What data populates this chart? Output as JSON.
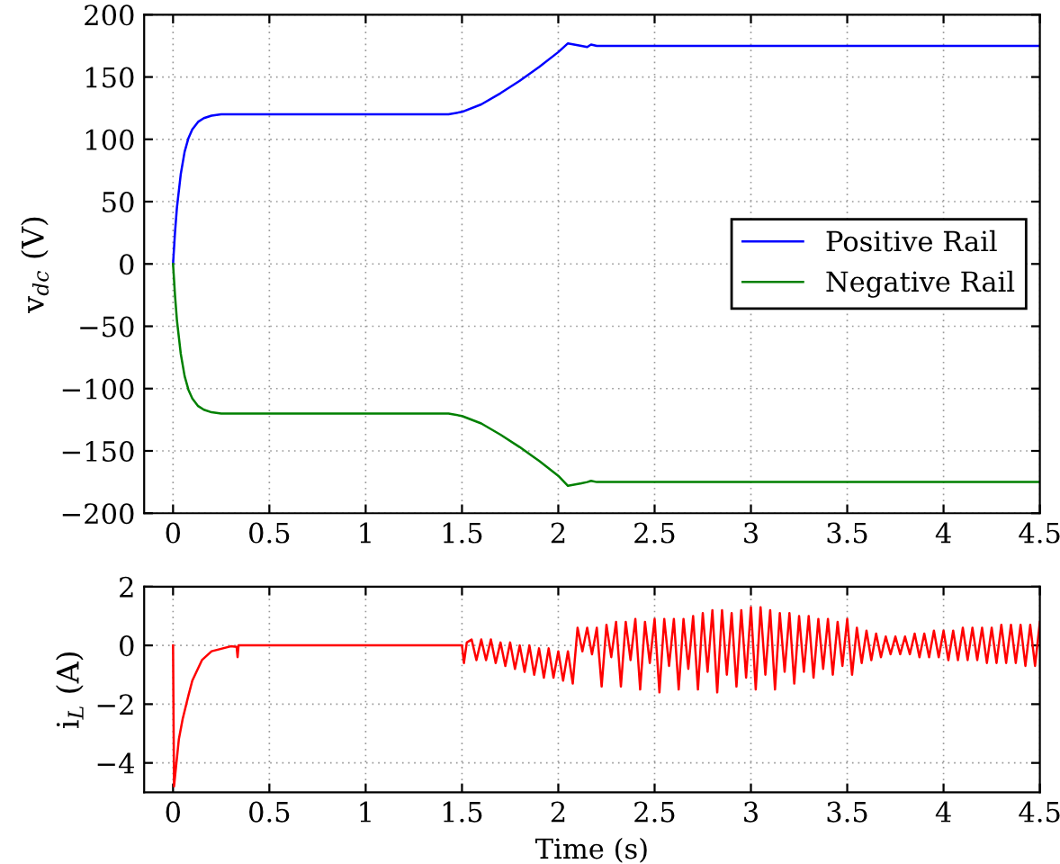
{
  "chart_data": [
    {
      "type": "line",
      "ylabel": "v$_{dc}$ (V)",
      "xlim": [
        -0.15,
        4.5
      ],
      "ylim": [
        -200,
        200
      ],
      "xticks": [
        0,
        0.5,
        1,
        1.5,
        2,
        2.5,
        3,
        3.5,
        4,
        4.5
      ],
      "yticks": [
        -200,
        -150,
        -100,
        -50,
        0,
        50,
        100,
        150,
        200
      ],
      "grid": true,
      "legend": "right",
      "marker": "none",
      "line_style": "solid",
      "series": [
        {
          "name": "Positive Rail",
          "color": "#0000ff",
          "x": [
            0,
            0.01,
            0.02,
            0.04,
            0.06,
            0.08,
            0.1,
            0.13,
            0.16,
            0.2,
            0.25,
            0.3,
            1.43,
            1.5,
            1.6,
            1.7,
            1.8,
            1.9,
            2.0,
            2.05,
            2.12,
            2.15,
            2.17,
            2.2,
            4.5
          ],
          "values": [
            0,
            25,
            45,
            72,
            90,
            101,
            108,
            114,
            117,
            119,
            120,
            120,
            120,
            122,
            128,
            137,
            147,
            158,
            170,
            177,
            175,
            174,
            176,
            175,
            175
          ]
        },
        {
          "name": "Negative Rail",
          "color": "#008000",
          "x": [
            0,
            0.01,
            0.02,
            0.04,
            0.06,
            0.08,
            0.1,
            0.13,
            0.16,
            0.2,
            0.25,
            0.3,
            1.43,
            1.5,
            1.6,
            1.7,
            1.8,
            1.9,
            2.0,
            2.05,
            2.12,
            2.15,
            2.17,
            2.2,
            4.5
          ],
          "values": [
            0,
            -25,
            -45,
            -72,
            -90,
            -101,
            -108,
            -114,
            -117,
            -119,
            -120,
            -120,
            -120,
            -122,
            -128,
            -137,
            -147,
            -158,
            -170,
            -178,
            -176,
            -175,
            -174,
            -175,
            -175
          ]
        }
      ]
    },
    {
      "type": "line",
      "xlabel": "Time (s)",
      "ylabel": "i$_{L}$ (A)",
      "xlim": [
        -0.15,
        4.5
      ],
      "ylim": [
        -5,
        2
      ],
      "xticks": [
        0,
        0.5,
        1,
        1.5,
        2,
        2.5,
        3,
        3.5,
        4,
        4.5
      ],
      "yticks": [
        -4,
        -2,
        0,
        2
      ],
      "grid": true,
      "marker": "none",
      "line_style": "solid",
      "series": [
        {
          "color": "#ff0000",
          "x": [
            0,
            0.005,
            0.03,
            0.05,
            0.08,
            0.1,
            0.15,
            0.2,
            0.3,
            0.33,
            0.335,
            0.34,
            1.5,
            1.51,
            1.525,
            1.55,
            1.575,
            1.6,
            1.625,
            1.65,
            1.675,
            1.7,
            1.725,
            1.75,
            1.775,
            1.8,
            1.825,
            1.85,
            1.875,
            1.9,
            1.925,
            1.95,
            1.975,
            2.0,
            2.025,
            2.05,
            2.075,
            2.1,
            2.125,
            2.15,
            2.175,
            2.2,
            2.225,
            2.25,
            2.275,
            2.3,
            2.325,
            2.35,
            2.375,
            2.4,
            2.425,
            2.45,
            2.475,
            2.5,
            2.525,
            2.55,
            2.575,
            2.6,
            2.625,
            2.65,
            2.675,
            2.7,
            2.725,
            2.75,
            2.775,
            2.8,
            2.825,
            2.85,
            2.875,
            2.9,
            2.925,
            2.95,
            2.975,
            3.0,
            3.025,
            3.05,
            3.075,
            3.1,
            3.125,
            3.15,
            3.175,
            3.2,
            3.225,
            3.25,
            3.275,
            3.3,
            3.325,
            3.35,
            3.375,
            3.4,
            3.425,
            3.45,
            3.475,
            3.5,
            3.525,
            3.55,
            3.575,
            3.6,
            3.625,
            3.65,
            3.675,
            3.7,
            3.725,
            3.75,
            3.775,
            3.8,
            3.825,
            3.85,
            3.875,
            3.9,
            3.925,
            3.95,
            3.975,
            4.0,
            4.025,
            4.05,
            4.075,
            4.1,
            4.125,
            4.15,
            4.175,
            4.2,
            4.225,
            4.25,
            4.275,
            4.3,
            4.325,
            4.35,
            4.375,
            4.4,
            4.425,
            4.45,
            4.475,
            4.5
          ],
          "values": [
            0,
            -4.8,
            -3.2,
            -2.5,
            -1.7,
            -1.2,
            -0.5,
            -0.2,
            -0.03,
            -0.05,
            -0.4,
            0,
            0,
            -0.6,
            0.1,
            0.2,
            -0.5,
            0.2,
            -0.5,
            0.2,
            -0.6,
            0.1,
            -0.7,
            0.1,
            -0.8,
            0.0,
            -0.9,
            0.0,
            -1.0,
            -0.1,
            -1.1,
            -0.1,
            -1.1,
            -0.2,
            -1.2,
            -0.2,
            -1.3,
            0.6,
            -0.2,
            0.6,
            -0.3,
            0.6,
            -1.4,
            0.7,
            -0.4,
            0.8,
            -1.4,
            0.8,
            -0.5,
            0.9,
            -1.5,
            0.8,
            -0.6,
            0.9,
            -1.6,
            0.9,
            -0.7,
            0.9,
            -1.5,
            0.9,
            -0.8,
            1.0,
            -1.5,
            1.1,
            -0.9,
            1.2,
            -1.6,
            1.2,
            -1.0,
            1.1,
            -1.4,
            1.2,
            -1.1,
            1.3,
            -1.5,
            1.3,
            -1.0,
            1.2,
            -1.5,
            1.1,
            -0.9,
            1.1,
            -1.3,
            1.0,
            -0.9,
            1.0,
            -1.1,
            0.9,
            -0.8,
            0.9,
            -1.0,
            0.8,
            -0.7,
            0.9,
            -1.0,
            0.6,
            -0.6,
            0.5,
            -0.5,
            0.4,
            -0.4,
            0.3,
            -0.3,
            0.3,
            -0.3,
            0.3,
            -0.3,
            0.4,
            -0.4,
            0.4,
            -0.4,
            0.5,
            -0.4,
            0.5,
            -0.5,
            0.5,
            -0.5,
            0.6,
            -0.5,
            0.6,
            -0.5,
            0.6,
            -0.6,
            0.6,
            -0.6,
            0.7,
            -0.6,
            0.7,
            -0.6,
            0.7,
            -0.7,
            0.7,
            -0.7,
            0.8
          ]
        }
      ]
    }
  ]
}
